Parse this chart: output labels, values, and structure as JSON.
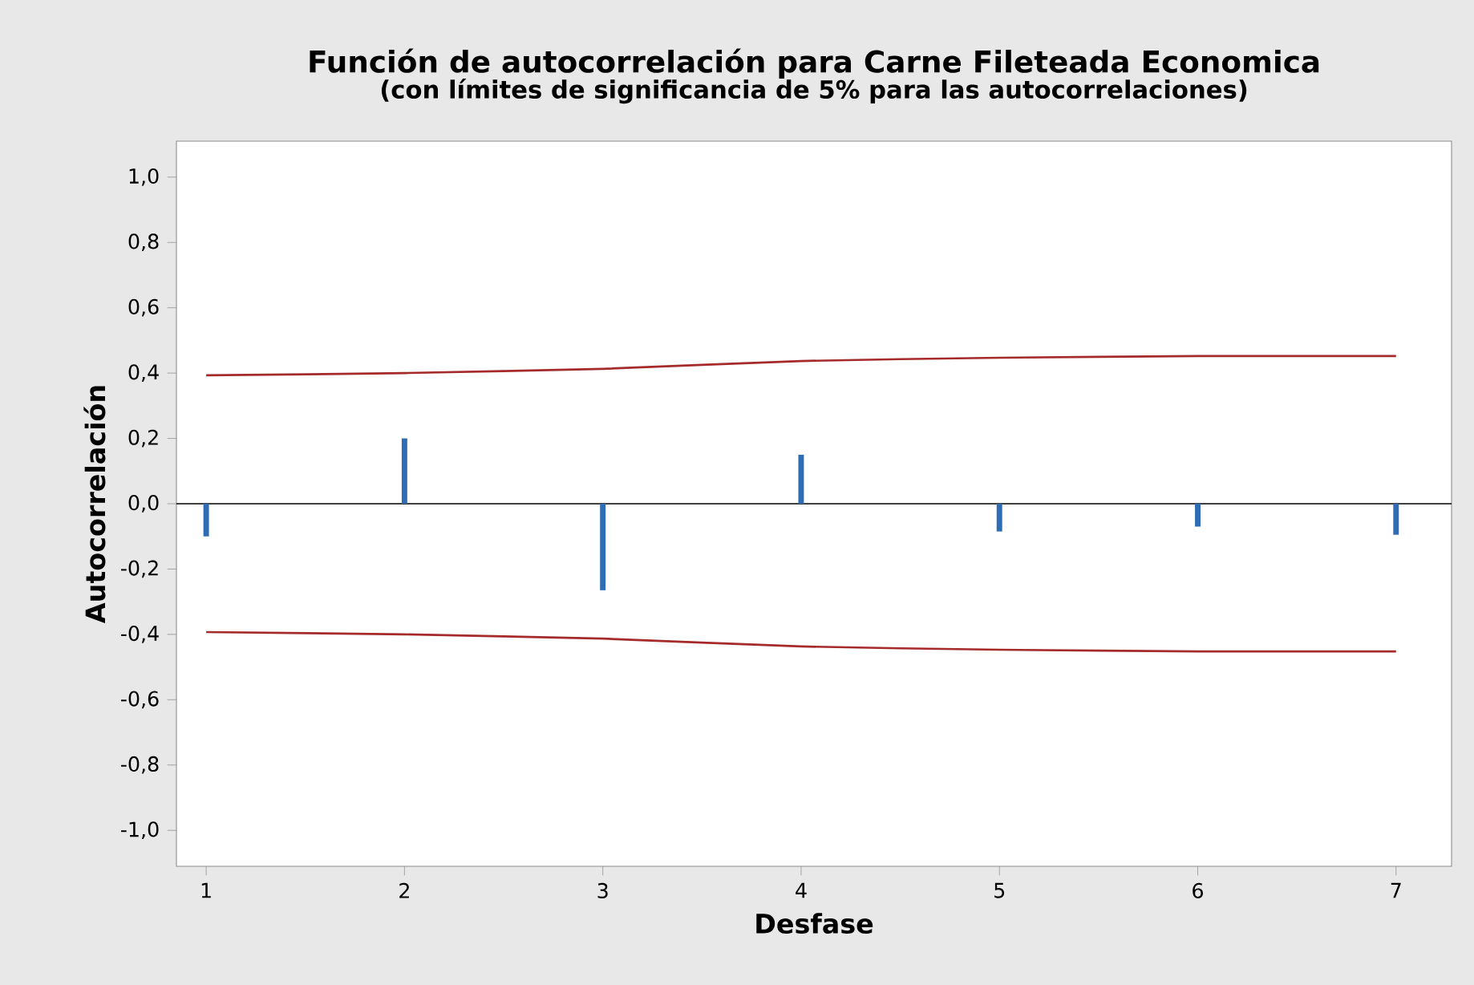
{
  "chart_data": {
    "type": "bar",
    "title": "Función de autocorrelación para Carne Fileteada Economica",
    "subtitle": "(con límites de significancia de 5% para las autocorrelaciones)",
    "xlabel": "Desfase",
    "ylabel": "Autocorrelación",
    "xlim": [
      0.85,
      7.28
    ],
    "ylim": [
      -1.11,
      1.11
    ],
    "xticks": [
      1,
      2,
      3,
      4,
      5,
      6,
      7
    ],
    "yticks": [
      {
        "value": -1.0,
        "label": "-1,0"
      },
      {
        "value": -0.8,
        "label": "-0,8"
      },
      {
        "value": -0.6,
        "label": "-0,6"
      },
      {
        "value": -0.4,
        "label": "-0,4"
      },
      {
        "value": -0.2,
        "label": "-0,2"
      },
      {
        "value": 0.0,
        "label": "0,0"
      },
      {
        "value": 0.2,
        "label": "0,2"
      },
      {
        "value": 0.4,
        "label": "0,4"
      },
      {
        "value": 0.6,
        "label": "0,6"
      },
      {
        "value": 0.8,
        "label": "0,8"
      },
      {
        "value": 1.0,
        "label": "1,0"
      }
    ],
    "ref_lines": [
      {
        "axis": "y",
        "value": 0,
        "color": "#000000"
      }
    ],
    "series": [
      {
        "color": "#2e6db4",
        "x": [
          1,
          2,
          3,
          4,
          5,
          6,
          7
        ],
        "values": [
          -0.1,
          0.2,
          -0.265,
          0.15,
          -0.085,
          -0.07,
          -0.095
        ]
      },
      {
        "type": "line",
        "color": "#a52a2a",
        "x": [
          1,
          2,
          3,
          4,
          5,
          6,
          7
        ],
        "values": [
          0.393,
          0.4,
          0.413,
          0.437,
          0.447,
          0.452,
          0.452
        ]
      },
      {
        "type": "line",
        "color": "#a52a2a",
        "x": [
          1,
          2,
          3,
          4,
          5,
          6,
          7
        ],
        "values": [
          -0.393,
          -0.4,
          -0.413,
          -0.437,
          -0.447,
          -0.452,
          -0.452
        ]
      }
    ]
  }
}
